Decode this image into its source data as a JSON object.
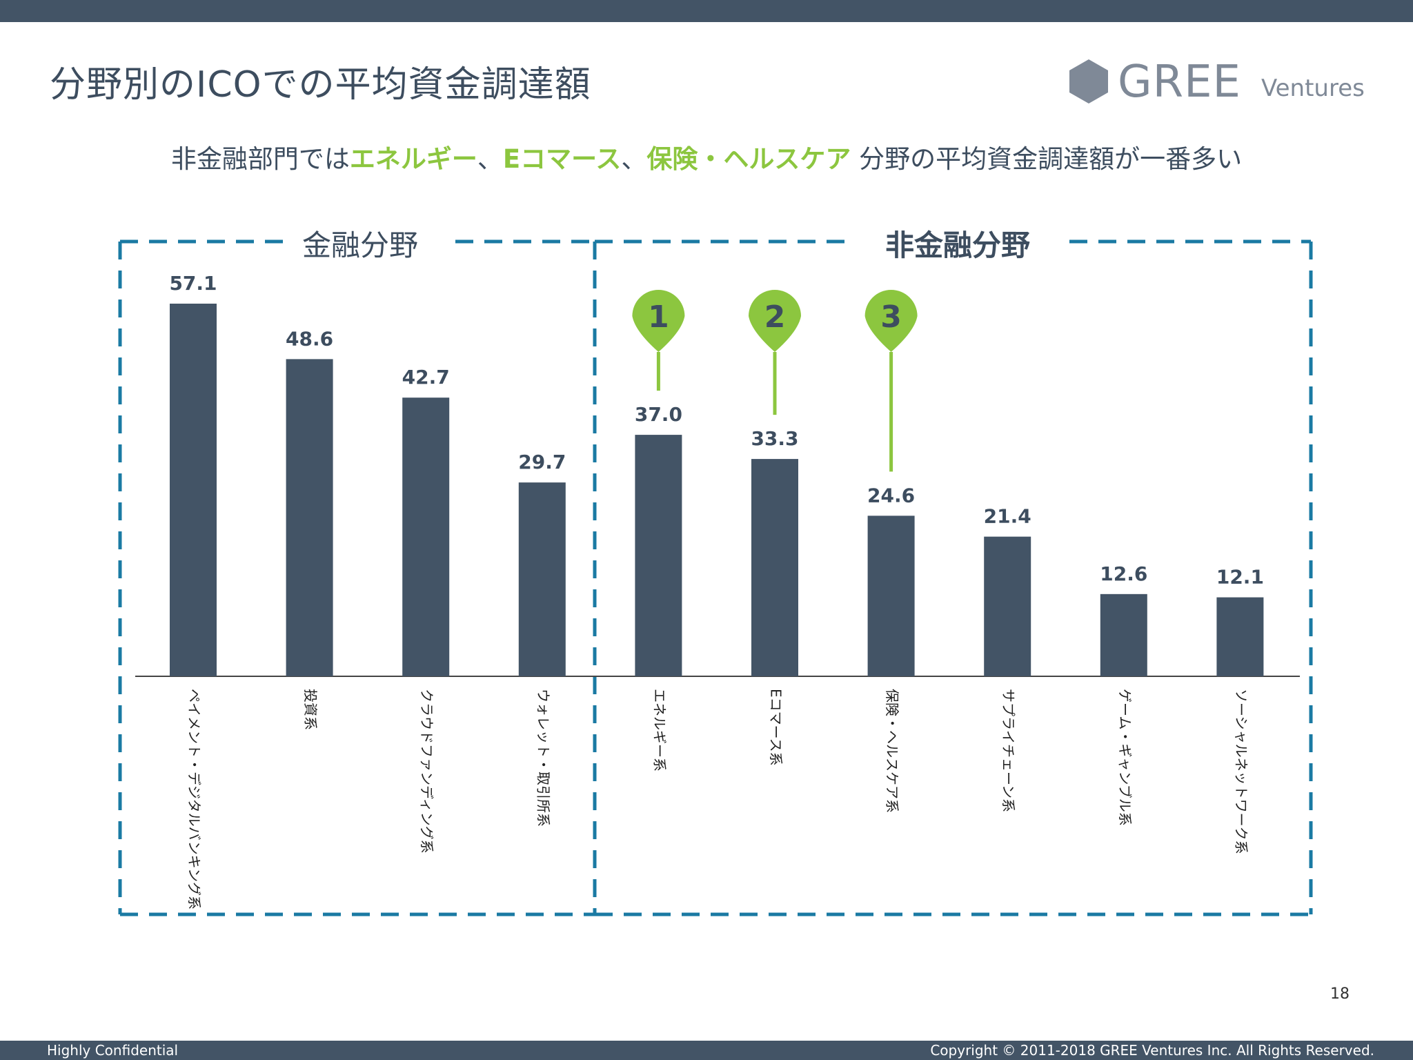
{
  "page": {
    "title": "分野別のICOでの平均資金調達額",
    "subtitle_parts": [
      {
        "text": "非金融部門では",
        "highlight": false
      },
      {
        "text": "エネルギー",
        "highlight": true
      },
      {
        "text": "、",
        "highlight": false
      },
      {
        "text": "Eコマース",
        "highlight": true
      },
      {
        "text": "、",
        "highlight": false
      },
      {
        "text": "保険・ヘルスケア",
        "highlight": true
      },
      {
        "text": " 分野の平均資金調達額が一番多い",
        "highlight": false
      }
    ],
    "page_number": "18",
    "footer_left": "Highly Confidential",
    "footer_right": "Copyright © 2011-2018 GREE Ventures Inc.  All Rights Reserved."
  },
  "logo": {
    "brand": "GREE",
    "suffix": "Ventures",
    "color": "#7f8997"
  },
  "colors": {
    "bar": "#435466",
    "highlight": "#8cc63f",
    "box_border": "#1a7aa3",
    "text": "#3d4d5f"
  },
  "groups": [
    {
      "label": "金融分野",
      "bold": false
    },
    {
      "label": "非金融分野",
      "bold": true
    }
  ],
  "chart_data": {
    "type": "bar",
    "categories": [
      "ペイメント・デジタルバンキング系",
      "投資系",
      "クラウドファンディング系",
      "ウォレット・取引所系",
      "エネルギー系",
      "Eコマース系",
      "保険・ヘルスケア系",
      "サプライチェーン系",
      "ゲーム・ギャンブル系",
      "ソーシャルネットワーク系"
    ],
    "values": [
      57.1,
      48.6,
      42.7,
      29.7,
      37.0,
      33.3,
      24.6,
      21.4,
      12.6,
      12.1
    ],
    "value_labels": [
      "57.1",
      "48.6",
      "42.7",
      "29.7",
      "37.0",
      "33.3",
      "24.6",
      "21.4",
      "12.6",
      "12.1"
    ],
    "groups": [
      {
        "name": "金融分野",
        "category_indices": [
          0,
          1,
          2,
          3
        ]
      },
      {
        "name": "非金融分野",
        "category_indices": [
          4,
          5,
          6,
          7,
          8,
          9
        ]
      }
    ],
    "rank_markers": [
      {
        "label": "1",
        "category_index": 4
      },
      {
        "label": "2",
        "category_index": 5
      },
      {
        "label": "3",
        "category_index": 6
      }
    ],
    "ylim": [
      0,
      57.1
    ],
    "grid": false,
    "legend": "none"
  }
}
